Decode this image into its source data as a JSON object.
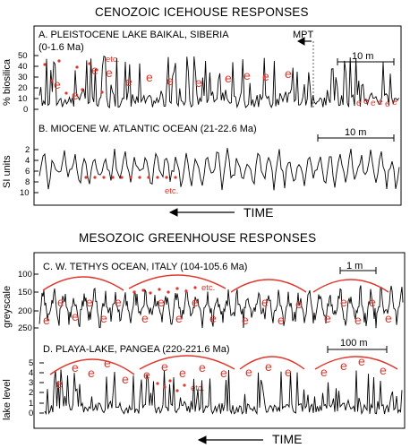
{
  "top": {
    "title": "CENOZOIC ICEHOUSE RESPONSES",
    "panelA": {
      "label": "A. PLEISTOCENE LAKE BAIKAL, SIBERIA",
      "sublabel": "(0-1.6 Ma)",
      "ylabel": "% biosilica",
      "yticks": [
        "50",
        "40",
        "30",
        "20",
        "10",
        "0"
      ],
      "mpt": "MPT",
      "scale": "10 m",
      "etc": "etc.",
      "e_marker": "e"
    },
    "panelB": {
      "label": "B. MIOCENE W. ATLANTIC OCEAN (21-22.6 Ma)",
      "ylabel": "SI units",
      "yticks": [
        "2",
        "4",
        "6",
        "8",
        "10"
      ],
      "scale": "10 m",
      "etc": "etc."
    },
    "time": "TIME"
  },
  "bottom": {
    "title": "MESOZOIC GREENHOUSE RESPONSES",
    "panelC": {
      "label": "C. W. TETHYS OCEAN,  ITALY (104-105.6 Ma)",
      "ylabel": "greyscale",
      "yticks": [
        "100",
        "150",
        "200",
        "250"
      ],
      "scale": "1 m",
      "etc": "etc."
    },
    "panelD": {
      "label": "D. PLAYA-LAKE, PANGEA (220-221.6 Ma)",
      "ylabel": "lake level",
      "yticks": [
        "5",
        "4",
        "3",
        "2",
        "1",
        "0"
      ],
      "scale": "100 m",
      "etc": "etc."
    },
    "time": "TIME"
  },
  "colors": {
    "accent": "#e0352b",
    "line": "#000000"
  }
}
